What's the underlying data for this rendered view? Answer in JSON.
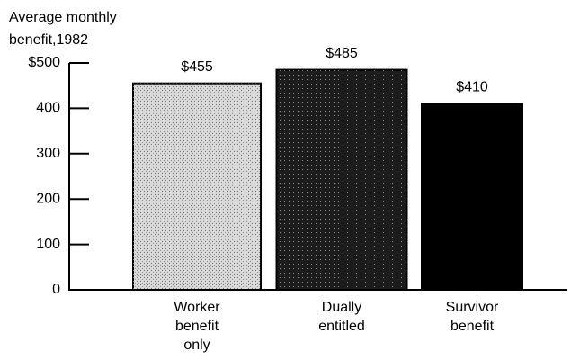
{
  "chart_data": {
    "type": "bar",
    "ylabel": [
      "Average monthly",
      "benefit,1982"
    ],
    "categories": [
      [
        "Worker",
        "benefit",
        "only"
      ],
      [
        "Dually",
        "entitled"
      ],
      [
        "Survivor",
        "benefit"
      ]
    ],
    "values": [
      455,
      485,
      410
    ],
    "value_labels": [
      "$455",
      "$485",
      "$410"
    ],
    "colors": [
      "#d8d8d8",
      "#1c1c1c",
      "#000000"
    ],
    "ylim": [
      0,
      500
    ],
    "yticks": [
      0,
      100,
      200,
      300,
      400,
      {
        "value": 500,
        "label": "$500"
      }
    ]
  }
}
